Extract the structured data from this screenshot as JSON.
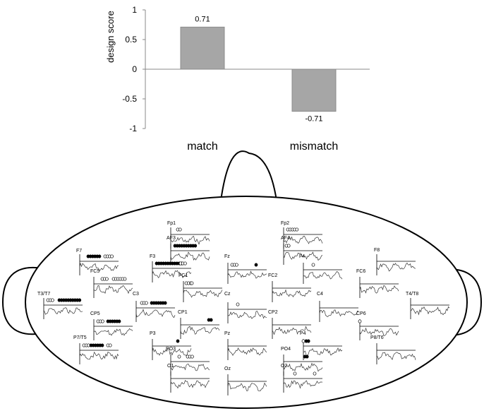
{
  "chart_data": {
    "type": "bar",
    "categories": [
      "match",
      "mismatch"
    ],
    "values": [
      0.71,
      -0.71
    ],
    "data_labels": [
      "0.71",
      "-0.71"
    ],
    "ylabel": "design score",
    "ylim": [
      -1,
      1
    ],
    "yticks": [
      "1",
      "0.5",
      "0",
      "-0.5",
      "-1"
    ],
    "ytick_values": [
      1,
      0.5,
      0,
      -0.5,
      -1
    ],
    "bar_color": "#a6a6a6",
    "grid": false
  },
  "head_map": {
    "electrodes": [
      "Fp1",
      "Fp2",
      "AF3",
      "AF4",
      "F7",
      "F3",
      "Fz",
      "F4",
      "F8",
      "FC5",
      "FC1",
      "FC2",
      "FC6",
      "T3/T7",
      "C3",
      "Cz",
      "C4",
      "T4/T8",
      "CP5",
      "CP1",
      "CP2",
      "CP6",
      "P7/T5",
      "P3",
      "Pz",
      "P4",
      "P8/T6",
      "PO3",
      "PO4",
      "O1",
      "Oz",
      "O2"
    ]
  }
}
